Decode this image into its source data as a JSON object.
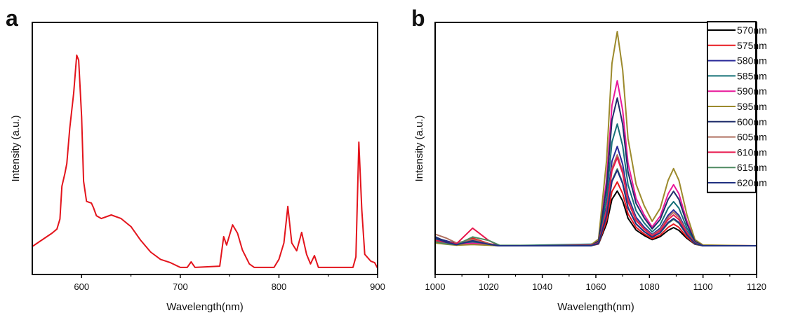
{
  "chart_data": [
    {
      "panel": "a",
      "type": "line",
      "xlabel": "Wavelength(nm)",
      "ylabel": "Intensity (a.u.)",
      "xlim": [
        550,
        900
      ],
      "ylim": [
        0,
        1
      ],
      "xticks": [
        600,
        700,
        800,
        900
      ],
      "xminor": [
        650,
        750,
        850
      ],
      "grid": false,
      "color": "#e3141c",
      "x": [
        550,
        570,
        575,
        578,
        580,
        583,
        585,
        588,
        592,
        595,
        597,
        600,
        602,
        605,
        610,
        612,
        615,
        620,
        630,
        640,
        650,
        660,
        670,
        680,
        690,
        700,
        707,
        711,
        715,
        740,
        744,
        747,
        753,
        758,
        763,
        770,
        775,
        795,
        800,
        805,
        809,
        813,
        818,
        823,
        828,
        832,
        836,
        840,
        875,
        878,
        881,
        884,
        887,
        893,
        897,
        900
      ],
      "y": [
        0.111,
        0.164,
        0.18,
        0.22,
        0.35,
        0.4,
        0.44,
        0.58,
        0.72,
        0.87,
        0.85,
        0.625,
        0.37,
        0.29,
        0.283,
        0.265,
        0.233,
        0.222,
        0.236,
        0.222,
        0.19,
        0.135,
        0.089,
        0.06,
        0.047,
        0.028,
        0.028,
        0.05,
        0.028,
        0.033,
        0.15,
        0.117,
        0.197,
        0.164,
        0.097,
        0.042,
        0.028,
        0.028,
        0.06,
        0.125,
        0.27,
        0.125,
        0.094,
        0.167,
        0.08,
        0.042,
        0.075,
        0.028,
        0.028,
        0.07,
        0.525,
        0.256,
        0.08,
        0.053,
        0.047,
        0.025
      ]
    },
    {
      "panel": "b",
      "type": "line",
      "xlabel": "Wavelength(nm)",
      "ylabel": "Intensity (a.u.)",
      "xlim": [
        1000,
        1120
      ],
      "ylim": [
        0,
        1
      ],
      "xticks": [
        1000,
        1020,
        1040,
        1060,
        1080,
        1100,
        1120
      ],
      "xminor": [
        1010,
        1030,
        1050,
        1070,
        1090,
        1110
      ],
      "grid": false,
      "legend_position": "top-right",
      "x": [
        1000,
        1004,
        1008,
        1014,
        1020,
        1024,
        1058,
        1061,
        1064,
        1066,
        1068,
        1070,
        1072,
        1075,
        1078,
        1081,
        1084,
        1087,
        1089,
        1091,
        1094,
        1097,
        1100,
        1120
      ],
      "series": [
        {
          "name": "570nm",
          "color": "#000000",
          "values": [
            0.144,
            0.134,
            0.122,
            0.134,
            0.12,
            0.114,
            0.114,
            0.121,
            0.201,
            0.298,
            0.331,
            0.292,
            0.223,
            0.176,
            0.155,
            0.138,
            0.15,
            0.175,
            0.186,
            0.175,
            0.143,
            0.12,
            0.114,
            0.114
          ]
        },
        {
          "name": "575nm",
          "color": "#e8191f",
          "values": [
            0.14,
            0.132,
            0.12,
            0.144,
            0.123,
            0.114,
            0.114,
            0.122,
            0.215,
            0.329,
            0.367,
            0.321,
            0.241,
            0.187,
            0.161,
            0.142,
            0.156,
            0.187,
            0.2,
            0.187,
            0.148,
            0.121,
            0.114,
            0.114
          ]
        },
        {
          "name": "580nm",
          "color": "#2a2a9a",
          "values": [
            0.146,
            0.134,
            0.12,
            0.134,
            0.12,
            0.114,
            0.114,
            0.126,
            0.272,
            0.449,
            0.508,
            0.437,
            0.311,
            0.227,
            0.188,
            0.159,
            0.183,
            0.235,
            0.256,
            0.235,
            0.171,
            0.125,
            0.114,
            0.114
          ]
        },
        {
          "name": "585nm",
          "color": "#157078",
          "values": [
            0.138,
            0.13,
            0.12,
            0.129,
            0.118,
            0.114,
            0.12,
            0.128,
            0.307,
            0.525,
            0.597,
            0.51,
            0.356,
            0.253,
            0.205,
            0.169,
            0.198,
            0.263,
            0.289,
            0.263,
            0.184,
            0.128,
            0.114,
            0.114
          ]
        },
        {
          "name": "590nm",
          "color": "#e8199a",
          "values": [
            0.13,
            0.124,
            0.118,
            0.124,
            0.117,
            0.114,
            0.116,
            0.134,
            0.376,
            0.671,
            0.769,
            0.651,
            0.442,
            0.302,
            0.237,
            0.189,
            0.231,
            0.32,
            0.356,
            0.32,
            0.211,
            0.133,
            0.116,
            0.114
          ]
        },
        {
          "name": "595nm",
          "color": "#9c8a2c",
          "values": [
            0.125,
            0.12,
            0.116,
            0.119,
            0.116,
            0.114,
            0.116,
            0.14,
            0.454,
            0.837,
            0.964,
            0.811,
            0.539,
            0.358,
            0.274,
            0.211,
            0.262,
            0.374,
            0.42,
            0.374,
            0.236,
            0.138,
            0.117,
            0.114
          ]
        },
        {
          "name": "600nm",
          "color": "#1f2d6b",
          "values": [
            0.15,
            0.13,
            0.12,
            0.134,
            0.12,
            0.114,
            0.114,
            0.132,
            0.348,
            0.612,
            0.7,
            0.595,
            0.407,
            0.282,
            0.225,
            0.181,
            0.218,
            0.298,
            0.33,
            0.298,
            0.2,
            0.131,
            0.114,
            0.114
          ]
        },
        {
          "name": "605nm",
          "color": "#b07060",
          "values": [
            0.16,
            0.145,
            0.125,
            0.139,
            0.122,
            0.114,
            0.114,
            0.125,
            0.258,
            0.421,
            0.475,
            0.41,
            0.295,
            0.218,
            0.182,
            0.156,
            0.178,
            0.227,
            0.247,
            0.227,
            0.167,
            0.125,
            0.114,
            0.114
          ]
        },
        {
          "name": "610nm",
          "color": "#e8194e",
          "values": [
            0.135,
            0.128,
            0.122,
            0.184,
            0.135,
            0.114,
            0.116,
            0.125,
            0.254,
            0.412,
            0.464,
            0.401,
            0.289,
            0.214,
            0.18,
            0.153,
            0.174,
            0.218,
            0.236,
            0.218,
            0.163,
            0.124,
            0.114,
            0.114
          ]
        },
        {
          "name": "615nm",
          "color": "#4e8a60",
          "values": [
            0.13,
            0.122,
            0.118,
            0.149,
            0.135,
            0.116,
            0.114,
            0.123,
            0.236,
            0.373,
            0.419,
            0.364,
            0.267,
            0.201,
            0.171,
            0.148,
            0.165,
            0.203,
            0.219,
            0.203,
            0.156,
            0.122,
            0.114,
            0.114
          ]
        },
        {
          "name": "620nm",
          "color": "#203080",
          "values": [
            0.145,
            0.128,
            0.118,
            0.134,
            0.12,
            0.114,
            0.114,
            0.123,
            0.234,
            0.369,
            0.414,
            0.36,
            0.264,
            0.2,
            0.17,
            0.148,
            0.166,
            0.206,
            0.222,
            0.206,
            0.157,
            0.123,
            0.114,
            0.114
          ]
        }
      ]
    }
  ],
  "panel_labels": [
    "a",
    "b"
  ]
}
